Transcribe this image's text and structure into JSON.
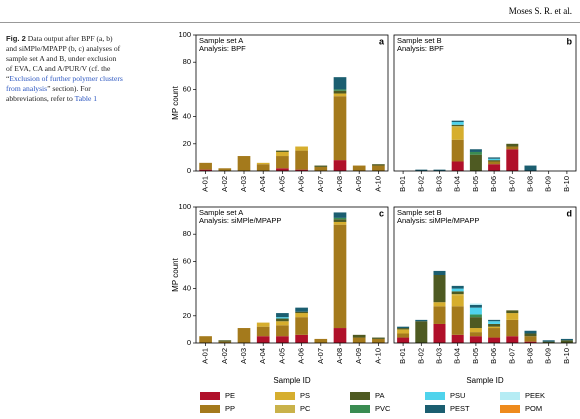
{
  "header": {
    "authors": "Moses S. R. et al."
  },
  "caption": {
    "label": "Fig. 2",
    "text_before": "Data output after BPF (a, b) and siMPle/MPAPP (b, c) analyses of sample set A and B, under exclusion of EVA, CA and A/PUR/V (cf. the “",
    "link": "Exclusion of further polymer clusters from analysis",
    "text_after": "” section). For abbreviations, refer to",
    "table_ref": "Table 1"
  },
  "chart_data": [
    {
      "type": "bar",
      "stacked": true,
      "panel": "a",
      "title": "Sample set A",
      "subtitle": "Analysis: BPF",
      "ylabel": "MP count",
      "categories": [
        "A-01",
        "A-02",
        "A-03",
        "A-04",
        "A-05",
        "A-06",
        "A-07",
        "A-08",
        "A-09",
        "A-10"
      ],
      "ylim": [
        0,
        100
      ],
      "yticks": [
        0,
        20,
        40,
        60,
        80,
        100
      ],
      "series": [
        {
          "name": "PE",
          "color": "#b0102a",
          "values": [
            1,
            0,
            0,
            0,
            2,
            1,
            0,
            8,
            0,
            0
          ]
        },
        {
          "name": "PP",
          "color": "#a47a1c",
          "values": [
            5,
            2,
            11,
            5,
            9,
            14,
            3,
            47,
            4,
            4
          ]
        },
        {
          "name": "PS",
          "color": "#d6ae2e",
          "values": [
            0,
            0,
            0,
            1,
            3,
            3,
            0,
            2,
            0,
            0
          ]
        },
        {
          "name": "PC",
          "color": "#c9b24a",
          "values": [
            0,
            0,
            0,
            0,
            0,
            0,
            0,
            0,
            0,
            0
          ]
        },
        {
          "name": "PA",
          "color": "#4e5a22",
          "values": [
            0,
            0,
            0,
            0,
            1,
            0,
            1,
            2,
            0,
            1
          ]
        },
        {
          "name": "PVC",
          "color": "#3a8c52",
          "values": [
            0,
            0,
            0,
            0,
            0,
            0,
            0,
            1,
            0,
            0
          ]
        },
        {
          "name": "PSU",
          "color": "#4fd3ec",
          "values": [
            0,
            0,
            0,
            0,
            0,
            0,
            0,
            0,
            0,
            0
          ]
        },
        {
          "name": "PEST",
          "color": "#1b5e70",
          "values": [
            0,
            0,
            0,
            0,
            0,
            0,
            0,
            9,
            0,
            0
          ]
        },
        {
          "name": "PEEK",
          "color": "#b5ecf4",
          "values": [
            0,
            0,
            0,
            0,
            0,
            0,
            0,
            0,
            0,
            0
          ]
        },
        {
          "name": "POM",
          "color": "#ee8a1c",
          "values": [
            0,
            0,
            0,
            0,
            0,
            0,
            0,
            0,
            0,
            0
          ]
        }
      ]
    },
    {
      "type": "bar",
      "stacked": true,
      "panel": "b",
      "title": "Sample set B",
      "subtitle": "Analysis: BPF",
      "categories": [
        "B-01",
        "B-02",
        "B-03",
        "B-04",
        "B-05",
        "B-06",
        "B-07",
        "B-08",
        "B-09",
        "B-10"
      ],
      "ylim": [
        0,
        100
      ],
      "series": [
        {
          "name": "PE",
          "color": "#b0102a",
          "values": [
            0,
            0,
            0,
            7,
            0,
            5,
            16,
            0,
            0,
            0
          ]
        },
        {
          "name": "PP",
          "color": "#a47a1c",
          "values": [
            0,
            0,
            0,
            16,
            0,
            2,
            2,
            0,
            0,
            0
          ]
        },
        {
          "name": "PS",
          "color": "#d6ae2e",
          "values": [
            0,
            0,
            0,
            9,
            0,
            0,
            0,
            0,
            0,
            0
          ]
        },
        {
          "name": "PC",
          "color": "#c9b24a",
          "values": [
            0,
            0,
            0,
            1,
            0,
            0,
            0,
            0,
            0,
            0
          ]
        },
        {
          "name": "PA",
          "color": "#4e5a22",
          "values": [
            0,
            0,
            0,
            1,
            12,
            1,
            2,
            0,
            0,
            0
          ]
        },
        {
          "name": "PVC",
          "color": "#3a8c52",
          "values": [
            0,
            0,
            0,
            0,
            2,
            0,
            0,
            0,
            0,
            0
          ]
        },
        {
          "name": "PSU",
          "color": "#4fd3ec",
          "values": [
            0,
            0,
            0,
            2,
            0,
            1,
            0,
            0,
            0,
            0
          ]
        },
        {
          "name": "PEST",
          "color": "#1b5e70",
          "values": [
            0,
            1,
            1,
            1,
            2,
            1,
            0,
            4,
            0,
            0
          ]
        },
        {
          "name": "PEEK",
          "color": "#b5ecf4",
          "values": [
            0,
            0,
            0,
            0,
            0,
            0,
            0,
            0,
            0,
            0
          ]
        },
        {
          "name": "POM",
          "color": "#ee8a1c",
          "values": [
            0,
            0,
            0,
            0,
            0,
            0,
            0,
            0,
            0,
            0
          ]
        }
      ]
    },
    {
      "type": "bar",
      "stacked": true,
      "panel": "c",
      "title": "Sample set A",
      "subtitle": "Analysis: siMPle/MPAPP",
      "ylabel": "MP count",
      "xlabel": "Sample ID",
      "categories": [
        "A-01",
        "A-02",
        "A-03",
        "A-04",
        "A-05",
        "A-06",
        "A-07",
        "A-08",
        "A-09",
        "A-10"
      ],
      "ylim": [
        0,
        100
      ],
      "yticks": [
        0,
        20,
        40,
        60,
        80,
        100
      ],
      "series": [
        {
          "name": "PE",
          "color": "#b0102a",
          "values": [
            0,
            0,
            0,
            5,
            5,
            6,
            0,
            11,
            0,
            0
          ]
        },
        {
          "name": "PP",
          "color": "#a47a1c",
          "values": [
            5,
            1,
            11,
            7,
            8,
            13,
            3,
            76,
            4,
            3
          ]
        },
        {
          "name": "PS",
          "color": "#d6ae2e",
          "values": [
            0,
            0,
            0,
            3,
            3,
            3,
            0,
            2,
            0,
            0
          ]
        },
        {
          "name": "PC",
          "color": "#c9b24a",
          "values": [
            0,
            0,
            0,
            0,
            0,
            0,
            0,
            0,
            0,
            0
          ]
        },
        {
          "name": "PA",
          "color": "#4e5a22",
          "values": [
            0,
            1,
            0,
            0,
            2,
            1,
            0,
            2,
            2,
            1
          ]
        },
        {
          "name": "PVC",
          "color": "#3a8c52",
          "values": [
            0,
            0,
            0,
            0,
            0,
            0,
            0,
            1,
            0,
            0
          ]
        },
        {
          "name": "PSU",
          "color": "#4fd3ec",
          "values": [
            0,
            0,
            0,
            0,
            1,
            0,
            0,
            0,
            0,
            0
          ]
        },
        {
          "name": "PEST",
          "color": "#1b5e70",
          "values": [
            0,
            0,
            0,
            0,
            3,
            3,
            0,
            4,
            0,
            0
          ]
        },
        {
          "name": "PEEK",
          "color": "#b5ecf4",
          "values": [
            0,
            0,
            0,
            0,
            0,
            0,
            0,
            0,
            0,
            0
          ]
        },
        {
          "name": "POM",
          "color": "#ee8a1c",
          "values": [
            0,
            0,
            0,
            0,
            0,
            0,
            0,
            0,
            0,
            0
          ]
        }
      ]
    },
    {
      "type": "bar",
      "stacked": true,
      "panel": "d",
      "title": "Sample set B",
      "subtitle": "Analysis: siMPle/MPAPP",
      "xlabel": "Sample ID",
      "categories": [
        "B-01",
        "B-02",
        "B-03",
        "B-04",
        "B-05",
        "B-06",
        "B-07",
        "B-08",
        "B-09",
        "B-10"
      ],
      "ylim": [
        0,
        100
      ],
      "series": [
        {
          "name": "PE",
          "color": "#b0102a",
          "values": [
            4,
            0,
            14,
            6,
            5,
            4,
            5,
            1,
            0,
            0
          ]
        },
        {
          "name": "PP",
          "color": "#a47a1c",
          "values": [
            3,
            0,
            13,
            21,
            3,
            7,
            12,
            4,
            0,
            0
          ]
        },
        {
          "name": "PS",
          "color": "#d6ae2e",
          "values": [
            3,
            0,
            3,
            8,
            3,
            1,
            5,
            0,
            0,
            0
          ]
        },
        {
          "name": "PC",
          "color": "#c9b24a",
          "values": [
            0,
            0,
            0,
            1,
            0,
            0,
            0,
            0,
            0,
            0
          ]
        },
        {
          "name": "PA",
          "color": "#4e5a22",
          "values": [
            1,
            16,
            20,
            2,
            8,
            2,
            2,
            2,
            1,
            2
          ]
        },
        {
          "name": "PVC",
          "color": "#3a8c52",
          "values": [
            0,
            0,
            0,
            0,
            2,
            0,
            0,
            0,
            0,
            0
          ]
        },
        {
          "name": "PSU",
          "color": "#4fd3ec",
          "values": [
            0,
            0,
            0,
            2,
            5,
            2,
            0,
            0,
            0,
            0
          ]
        },
        {
          "name": "PEST",
          "color": "#1b5e70",
          "values": [
            1,
            1,
            3,
            2,
            2,
            1,
            0,
            2,
            1,
            1
          ]
        },
        {
          "name": "PEEK",
          "color": "#b5ecf4",
          "values": [
            0,
            0,
            0,
            0,
            1,
            0,
            0,
            0,
            0,
            0
          ]
        },
        {
          "name": "POM",
          "color": "#ee8a1c",
          "values": [
            0,
            0,
            0,
            0,
            0,
            0,
            0,
            0,
            0,
            0
          ]
        }
      ]
    }
  ]
}
